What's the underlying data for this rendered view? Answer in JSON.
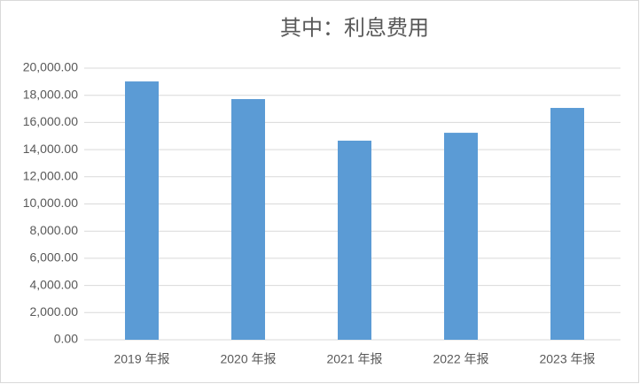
{
  "chart_data": {
    "type": "bar",
    "title": "其中：利息费用",
    "categories": [
      "2019 年报",
      "2020 年报",
      "2021 年报",
      "2022 年报",
      "2023 年报"
    ],
    "values": [
      19020,
      17720,
      14660,
      15240,
      17070
    ],
    "color": "#5b9bd5",
    "ylim": [
      0,
      20000
    ],
    "yticks": [
      {
        "value": 0,
        "label": "0.00"
      },
      {
        "value": 2000,
        "label": "2,000.00"
      },
      {
        "value": 4000,
        "label": "4,000.00"
      },
      {
        "value": 6000,
        "label": "6,000.00"
      },
      {
        "value": 8000,
        "label": "8,000.00"
      },
      {
        "value": 10000,
        "label": "10,000.00"
      },
      {
        "value": 12000,
        "label": "12,000.00"
      },
      {
        "value": 14000,
        "label": "14,000.00"
      },
      {
        "value": 16000,
        "label": "16,000.00"
      },
      {
        "value": 18000,
        "label": "18,000.00"
      },
      {
        "value": 20000,
        "label": "20,000.00"
      }
    ],
    "grid": true
  }
}
